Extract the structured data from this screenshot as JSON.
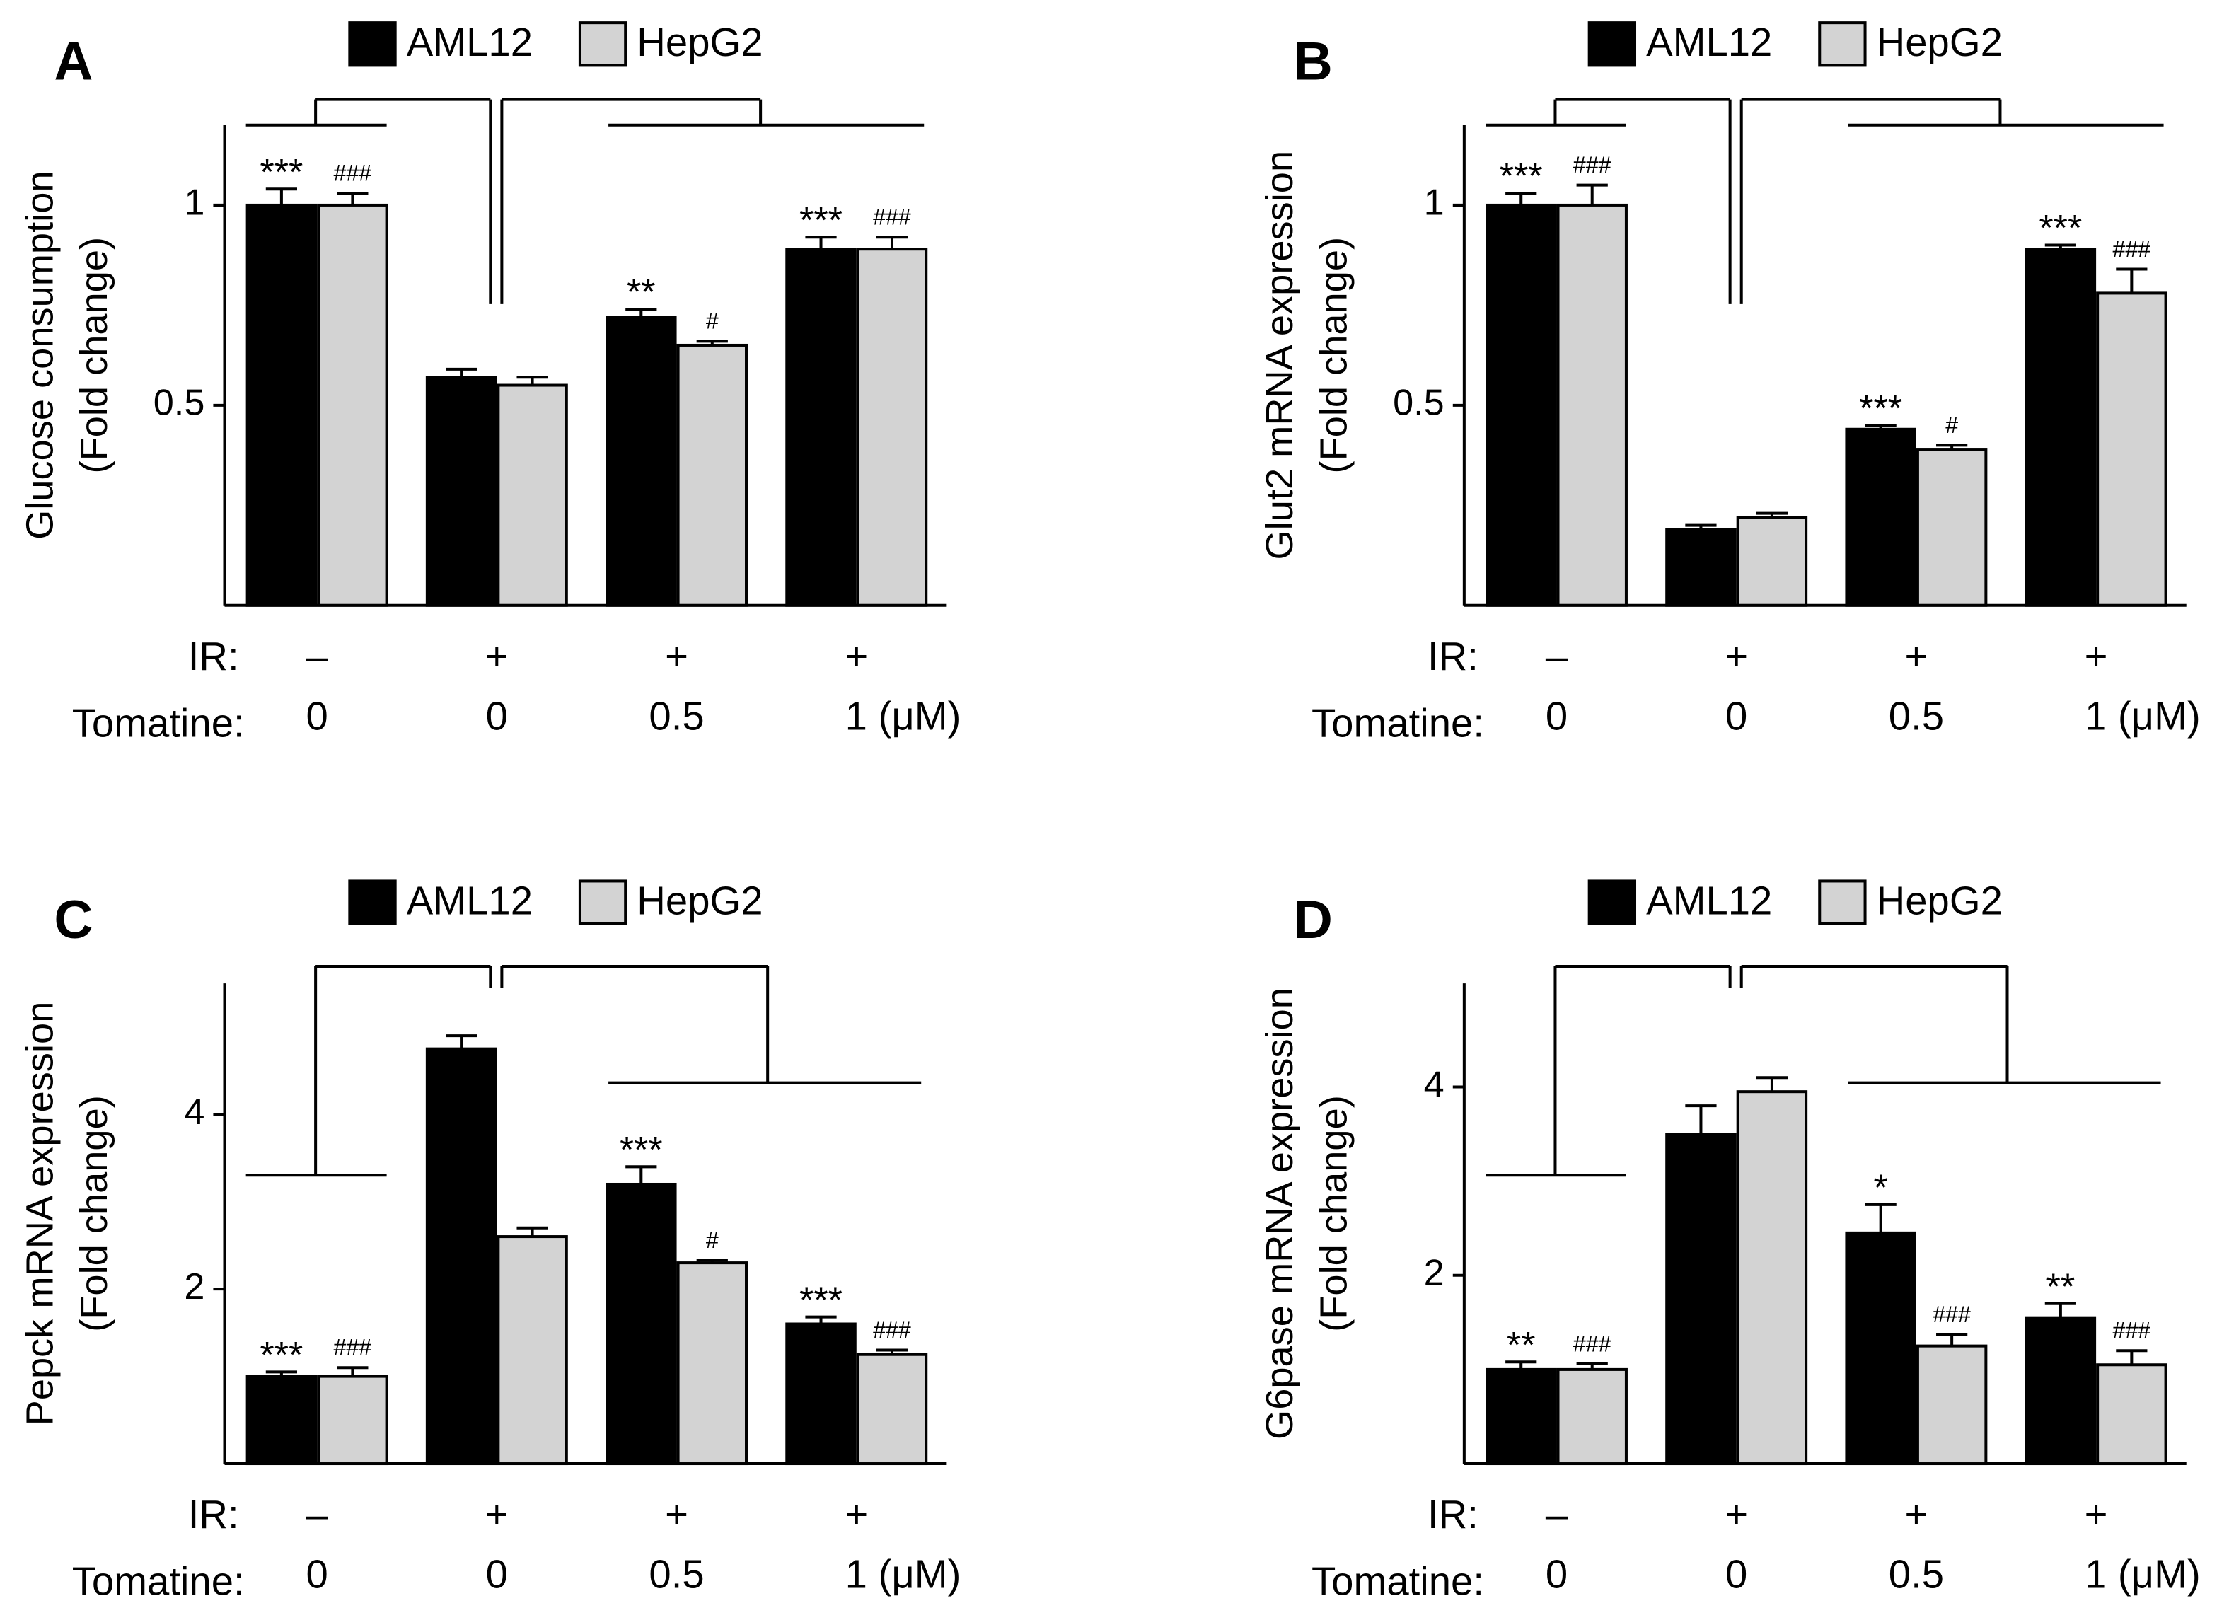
{
  "chart_data": [
    {
      "type": "bar",
      "label": "A",
      "ylabel": [
        "Glucose consumption",
        "(Fold change)"
      ],
      "ylim": [
        0,
        1.2
      ],
      "yticks": [
        0.5,
        1
      ],
      "ir_label": "IR:",
      "ir": [
        "–",
        "+",
        "+",
        "+"
      ],
      "tomatine_label": "Tomatine:",
      "categories": [
        "0",
        "0",
        "0.5",
        "1 (μM)"
      ],
      "series": [
        {
          "name": "AML12",
          "color": "#000000",
          "values": [
            1.0,
            0.57,
            0.72,
            0.89
          ],
          "errors": [
            0.04,
            0.02,
            0.02,
            0.03
          ],
          "annotations": [
            "***",
            null,
            "**",
            "***"
          ]
        },
        {
          "name": "HepG2",
          "color": "#d3d3d3",
          "values": [
            1.0,
            0.55,
            0.65,
            0.89
          ],
          "errors": [
            0.03,
            0.02,
            0.01,
            0.03
          ],
          "annotations": [
            "###",
            null,
            "#",
            "###"
          ]
        }
      ]
    },
    {
      "type": "bar",
      "label": "B",
      "ylabel": [
        "Glut2 mRNA expression",
        "(Fold change)"
      ],
      "ylim": [
        0,
        1.2
      ],
      "yticks": [
        0.5,
        1
      ],
      "ir_label": "IR:",
      "ir": [
        "–",
        "+",
        "+",
        "+"
      ],
      "tomatine_label": "Tomatine:",
      "categories": [
        "0",
        "0",
        "0.5",
        "1 (μM)"
      ],
      "series": [
        {
          "name": "AML12",
          "color": "#000000",
          "values": [
            1.0,
            0.19,
            0.44,
            0.89
          ],
          "errors": [
            0.03,
            0.01,
            0.01,
            0.01
          ],
          "annotations": [
            "***",
            null,
            "***",
            "***"
          ]
        },
        {
          "name": "HepG2",
          "color": "#d3d3d3",
          "values": [
            1.0,
            0.22,
            0.39,
            0.78
          ],
          "errors": [
            0.05,
            0.01,
            0.01,
            0.06
          ],
          "annotations": [
            "###",
            null,
            "#",
            "###"
          ]
        }
      ]
    },
    {
      "type": "bar",
      "label": "C",
      "ylabel": [
        "Pepck mRNA expression",
        "(Fold change)"
      ],
      "ylim": [
        0,
        5.5
      ],
      "yticks": [
        2,
        4
      ],
      "ir_label": "IR:",
      "ir": [
        "–",
        "+",
        "+",
        "+"
      ],
      "tomatine_label": "Tomatine:",
      "categories": [
        "0",
        "0",
        "0.5",
        "1 (μM)"
      ],
      "series": [
        {
          "name": "AML12",
          "color": "#000000",
          "values": [
            1.0,
            4.75,
            3.2,
            1.6
          ],
          "errors": [
            0.05,
            0.15,
            0.2,
            0.08
          ],
          "annotations": [
            "***",
            null,
            "***",
            "***"
          ]
        },
        {
          "name": "HepG2",
          "color": "#d3d3d3",
          "values": [
            1.0,
            2.6,
            2.3,
            1.25
          ],
          "errors": [
            0.1,
            0.1,
            0.03,
            0.05
          ],
          "annotations": [
            "###",
            null,
            "#",
            "###"
          ]
        }
      ]
    },
    {
      "type": "bar",
      "label": "D",
      "ylabel": [
        "G6pase mRNA expression",
        "(Fold change)"
      ],
      "ylim": [
        0,
        5.1
      ],
      "yticks": [
        2,
        4
      ],
      "ir_label": "IR:",
      "ir": [
        "–",
        "+",
        "+",
        "+"
      ],
      "tomatine_label": "Tomatine:",
      "categories": [
        "0",
        "0",
        "0.5",
        "1 (μM)"
      ],
      "series": [
        {
          "name": "AML12",
          "color": "#000000",
          "values": [
            1.0,
            3.5,
            2.45,
            1.55
          ],
          "errors": [
            0.08,
            0.3,
            0.3,
            0.15
          ],
          "annotations": [
            "**",
            null,
            "*",
            "**"
          ]
        },
        {
          "name": "HepG2",
          "color": "#d3d3d3",
          "values": [
            1.0,
            3.95,
            1.25,
            1.05
          ],
          "errors": [
            0.06,
            0.15,
            0.12,
            0.15
          ],
          "annotations": [
            "###",
            null,
            "###",
            "###"
          ]
        }
      ]
    }
  ]
}
